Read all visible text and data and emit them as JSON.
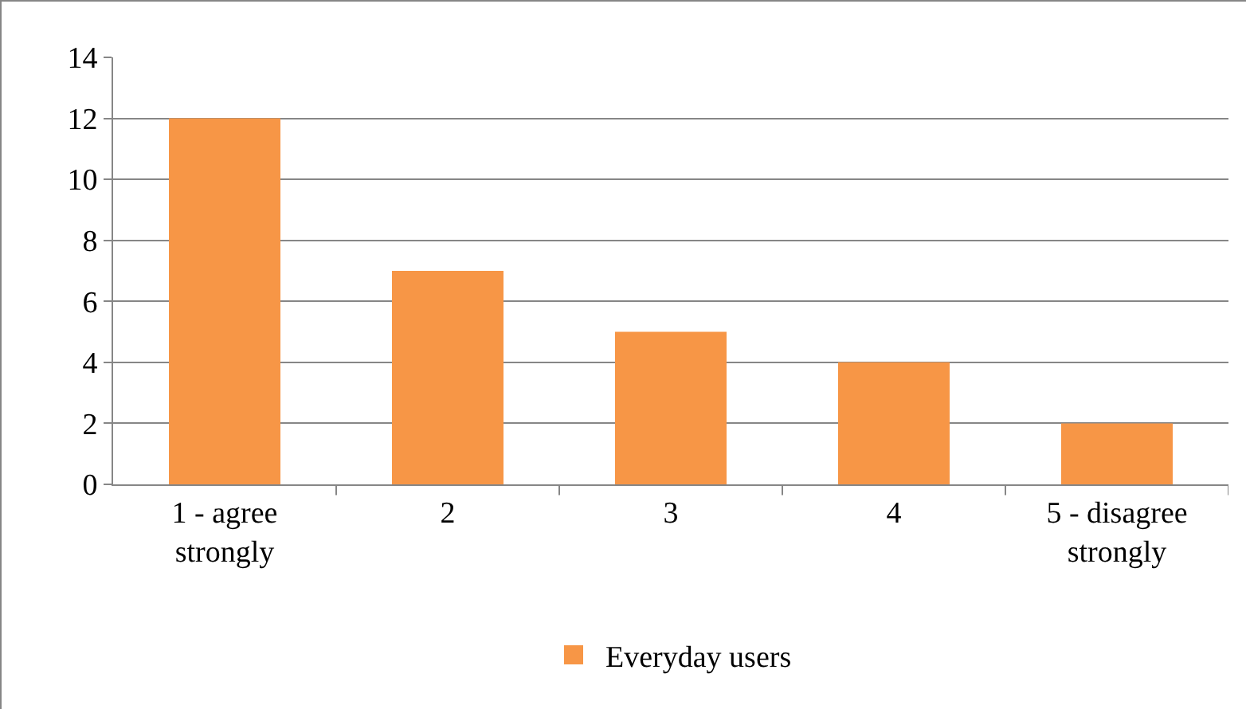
{
  "chart_data": {
    "type": "bar",
    "categories": [
      "1 - agree\nstrongly",
      "2",
      "3",
      "4",
      "5 - disagree\nstrongly"
    ],
    "series": [
      {
        "name": "Everyday users",
        "color": "#f79646",
        "values": [
          12,
          7,
          5,
          4,
          2
        ]
      }
    ],
    "ylim": [
      0,
      14
    ],
    "yticks": [
      0,
      2,
      4,
      6,
      8,
      10,
      12,
      14
    ],
    "grid": "y",
    "legend": "bottom"
  }
}
